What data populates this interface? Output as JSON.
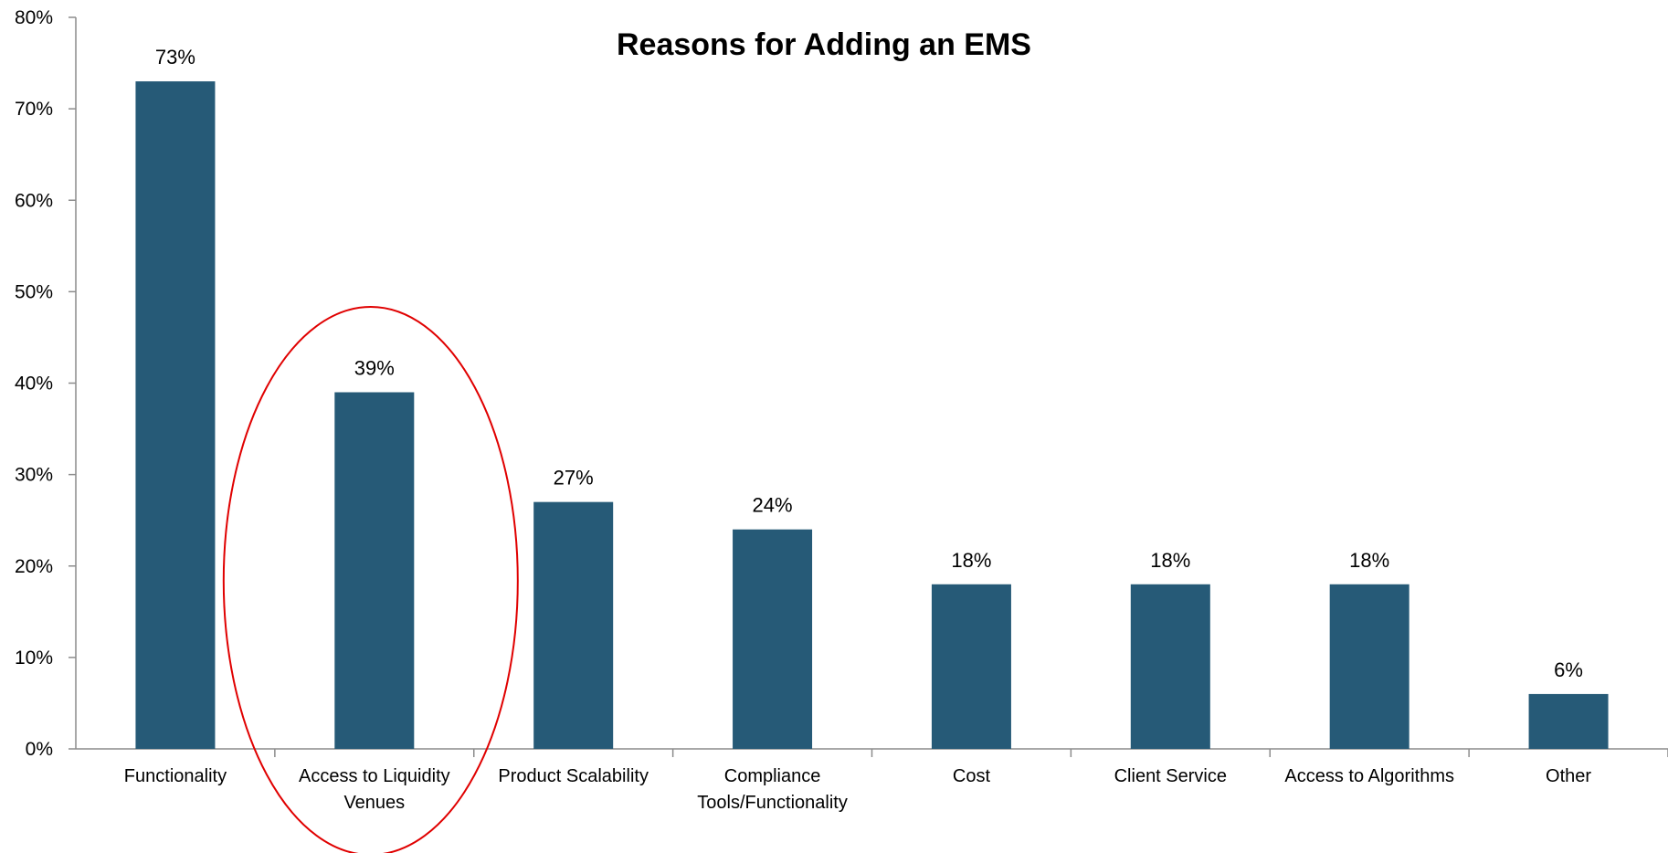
{
  "chart_data": {
    "type": "bar",
    "title": "Reasons for Adding an EMS",
    "xlabel": "",
    "ylabel": "",
    "ylim": [
      0,
      80
    ],
    "y_ticks": [
      0,
      10,
      20,
      30,
      40,
      50,
      60,
      70,
      80
    ],
    "y_tick_labels": [
      "0%",
      "10%",
      "20%",
      "30%",
      "40%",
      "50%",
      "60%",
      "70%",
      "80%"
    ],
    "grid": false,
    "legend": "none",
    "categories": [
      [
        "Functionality"
      ],
      [
        "Access to Liquidity",
        "Venues"
      ],
      [
        "Product Scalability"
      ],
      [
        "Compliance",
        "Tools/Functionality"
      ],
      [
        "Cost"
      ],
      [
        "Client Service"
      ],
      [
        "Access to Algorithms"
      ],
      [
        "Other"
      ]
    ],
    "values": [
      73,
      39,
      27,
      24,
      18,
      18,
      18,
      6
    ],
    "data_labels": [
      "73%",
      "39%",
      "27%",
      "24%",
      "18%",
      "18%",
      "18%",
      "6%"
    ],
    "bar_color": "#265a77",
    "highlight": {
      "shape": "ellipse",
      "category_index": 1,
      "color": "#e00000"
    }
  }
}
